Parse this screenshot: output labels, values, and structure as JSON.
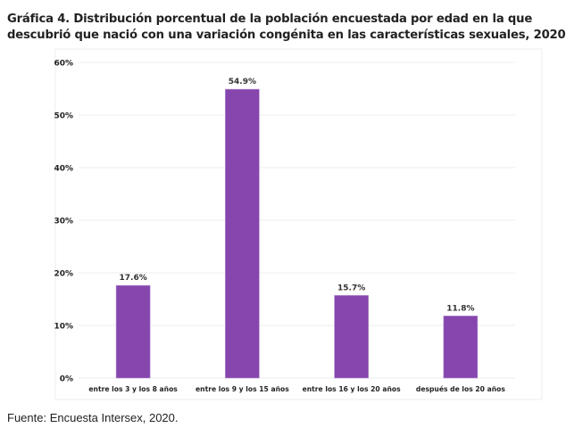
{
  "title_lines": [
    "Gráfica 4. Distribución porcentual de la población encuestada por edad en la que",
    "descubrió que nació con una variación congénita en las características sexuales, 2020"
  ],
  "source": "Fuente: Encuesta Intersex, 2020.",
  "chart_data": {
    "type": "bar",
    "title": "Gráfica 4. Distribución porcentual de la población encuestada por edad en la que descubrió que nació con una variación congénita en las características sexuales, 2020",
    "categories": [
      "entre los 3 y los 8 años",
      "entre los 9 y los 15 años",
      "entre los 16 y los 20 años",
      "después de los 20 años"
    ],
    "values": [
      17.6,
      54.9,
      15.7,
      11.8
    ],
    "data_labels": [
      "17.6%",
      "54.9%",
      "15.7%",
      "11.8%"
    ],
    "ylim": [
      0,
      60
    ],
    "yticks": [
      0,
      10,
      20,
      30,
      40,
      50,
      60
    ],
    "ytick_labels": [
      "0%",
      "10%",
      "20%",
      "30%",
      "40%",
      "50%",
      "60%"
    ],
    "xlabel": "",
    "ylabel": "",
    "grid": true,
    "bar_color": "#8646ad"
  }
}
